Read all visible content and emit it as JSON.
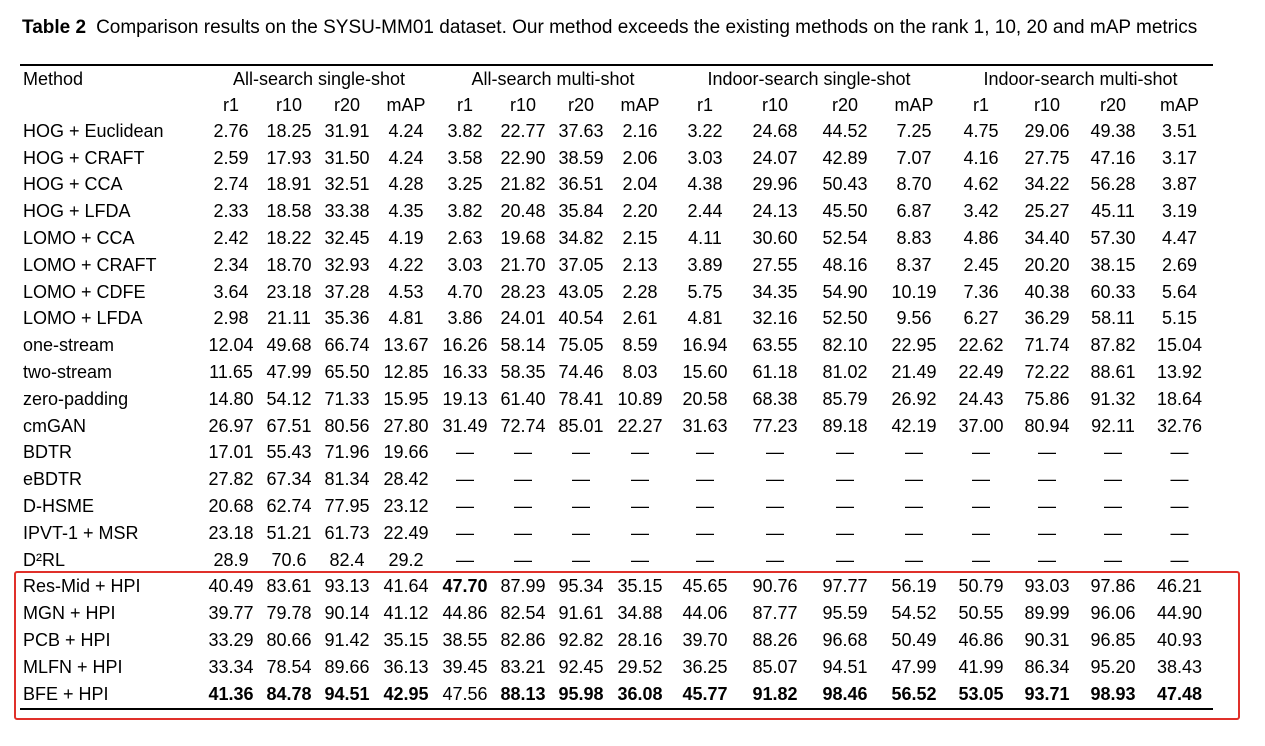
{
  "caption": {
    "label": "Table 2",
    "text": "Comparison results on the SYSU-MM01 dataset. Our method exceeds the existing methods on the rank 1, 10, 20 and mAP metrics"
  },
  "table": {
    "method_header": "Method",
    "groups": [
      "All-search single-shot",
      "All-search multi-shot",
      "Indoor-search single-shot",
      "Indoor-search multi-shot"
    ],
    "subheaders": [
      "r1",
      "r10",
      "r20",
      "mAP",
      "r1",
      "r10",
      "r20",
      "mAP",
      "r1",
      "r10",
      "r20",
      "mAP",
      "r1",
      "r10",
      "r20",
      "mAP"
    ],
    "rows": [
      [
        "HOG + Euclidean",
        "2.76",
        "18.25",
        "31.91",
        "4.24",
        "3.82",
        "22.77",
        "37.63",
        "2.16",
        "3.22",
        "24.68",
        "44.52",
        "7.25",
        "4.75",
        "29.06",
        "49.38",
        "3.51"
      ],
      [
        "HOG + CRAFT",
        "2.59",
        "17.93",
        "31.50",
        "4.24",
        "3.58",
        "22.90",
        "38.59",
        "2.06",
        "3.03",
        "24.07",
        "42.89",
        "7.07",
        "4.16",
        "27.75",
        "47.16",
        "3.17"
      ],
      [
        "HOG + CCA",
        "2.74",
        "18.91",
        "32.51",
        "4.28",
        "3.25",
        "21.82",
        "36.51",
        "2.04",
        "4.38",
        "29.96",
        "50.43",
        "8.70",
        "4.62",
        "34.22",
        "56.28",
        "3.87"
      ],
      [
        "HOG + LFDA",
        "2.33",
        "18.58",
        "33.38",
        "4.35",
        "3.82",
        "20.48",
        "35.84",
        "2.20",
        "2.44",
        "24.13",
        "45.50",
        "6.87",
        "3.42",
        "25.27",
        "45.11",
        "3.19"
      ],
      [
        "LOMO + CCA",
        "2.42",
        "18.22",
        "32.45",
        "4.19",
        "2.63",
        "19.68",
        "34.82",
        "2.15",
        "4.11",
        "30.60",
        "52.54",
        "8.83",
        "4.86",
        "34.40",
        "57.30",
        "4.47"
      ],
      [
        "LOMO + CRAFT",
        "2.34",
        "18.70",
        "32.93",
        "4.22",
        "3.03",
        "21.70",
        "37.05",
        "2.13",
        "3.89",
        "27.55",
        "48.16",
        "8.37",
        "2.45",
        "20.20",
        "38.15",
        "2.69"
      ],
      [
        "LOMO + CDFE",
        "3.64",
        "23.18",
        "37.28",
        "4.53",
        "4.70",
        "28.23",
        "43.05",
        "2.28",
        "5.75",
        "34.35",
        "54.90",
        "10.19",
        "7.36",
        "40.38",
        "60.33",
        "5.64"
      ],
      [
        "LOMO + LFDA",
        "2.98",
        "21.11",
        "35.36",
        "4.81",
        "3.86",
        "24.01",
        "40.54",
        "2.61",
        "4.81",
        "32.16",
        "52.50",
        "9.56",
        "6.27",
        "36.29",
        "58.11",
        "5.15"
      ],
      [
        "one-stream",
        "12.04",
        "49.68",
        "66.74",
        "13.67",
        "16.26",
        "58.14",
        "75.05",
        "8.59",
        "16.94",
        "63.55",
        "82.10",
        "22.95",
        "22.62",
        "71.74",
        "87.82",
        "15.04"
      ],
      [
        "two-stream",
        "11.65",
        "47.99",
        "65.50",
        "12.85",
        "16.33",
        "58.35",
        "74.46",
        "8.03",
        "15.60",
        "61.18",
        "81.02",
        "21.49",
        "22.49",
        "72.22",
        "88.61",
        "13.92"
      ],
      [
        "zero-padding",
        "14.80",
        "54.12",
        "71.33",
        "15.95",
        "19.13",
        "61.40",
        "78.41",
        "10.89",
        "20.58",
        "68.38",
        "85.79",
        "26.92",
        "24.43",
        "75.86",
        "91.32",
        "18.64"
      ],
      [
        "cmGAN",
        "26.97",
        "67.51",
        "80.56",
        "27.80",
        "31.49",
        "72.74",
        "85.01",
        "22.27",
        "31.63",
        "77.23",
        "89.18",
        "42.19",
        "37.00",
        "80.94",
        "92.11",
        "32.76"
      ],
      [
        "BDTR",
        "17.01",
        "55.43",
        "71.96",
        "19.66",
        "—",
        "—",
        "—",
        "—",
        "—",
        "—",
        "—",
        "—",
        "—",
        "—",
        "—",
        "—"
      ],
      [
        "eBDTR",
        "27.82",
        "67.34",
        "81.34",
        "28.42",
        "—",
        "—",
        "—",
        "—",
        "—",
        "—",
        "—",
        "—",
        "—",
        "—",
        "—",
        "—"
      ],
      [
        "D-HSME",
        "20.68",
        "62.74",
        "77.95",
        "23.12",
        "—",
        "—",
        "—",
        "—",
        "—",
        "—",
        "—",
        "—",
        "—",
        "—",
        "—",
        "—"
      ],
      [
        "IPVT-1 + MSR",
        "23.18",
        "51.21",
        "61.73",
        "22.49",
        "—",
        "—",
        "—",
        "—",
        "—",
        "—",
        "—",
        "—",
        "—",
        "—",
        "—",
        "—"
      ],
      [
        "D²RL",
        "28.9",
        "70.6",
        "82.4",
        "29.2",
        "—",
        "—",
        "—",
        "—",
        "—",
        "—",
        "—",
        "—",
        "—",
        "—",
        "—",
        "—"
      ],
      [
        "Res-Mid + HPI",
        "40.49",
        "83.61",
        "93.13",
        "41.64",
        "47.70",
        "87.99",
        "95.34",
        "35.15",
        "45.65",
        "90.76",
        "97.77",
        "56.19",
        "50.79",
        "93.03",
        "97.86",
        "46.21"
      ],
      [
        "MGN + HPI",
        "39.77",
        "79.78",
        "90.14",
        "41.12",
        "44.86",
        "82.54",
        "91.61",
        "34.88",
        "44.06",
        "87.77",
        "95.59",
        "54.52",
        "50.55",
        "89.99",
        "96.06",
        "44.90"
      ],
      [
        "PCB + HPI",
        "33.29",
        "80.66",
        "91.42",
        "35.15",
        "38.55",
        "82.86",
        "92.82",
        "28.16",
        "39.70",
        "88.26",
        "96.68",
        "50.49",
        "46.86",
        "90.31",
        "96.85",
        "40.93"
      ],
      [
        "MLFN + HPI",
        "33.34",
        "78.54",
        "89.66",
        "36.13",
        "39.45",
        "83.21",
        "92.45",
        "29.52",
        "36.25",
        "85.07",
        "94.51",
        "47.99",
        "41.99",
        "86.34",
        "95.20",
        "38.43"
      ],
      [
        "BFE + HPI",
        "41.36",
        "84.78",
        "94.51",
        "42.95",
        "47.56",
        "88.13",
        "95.98",
        "36.08",
        "45.77",
        "91.82",
        "98.46",
        "56.52",
        "53.05",
        "93.71",
        "98.93",
        "47.48"
      ]
    ]
  }
}
